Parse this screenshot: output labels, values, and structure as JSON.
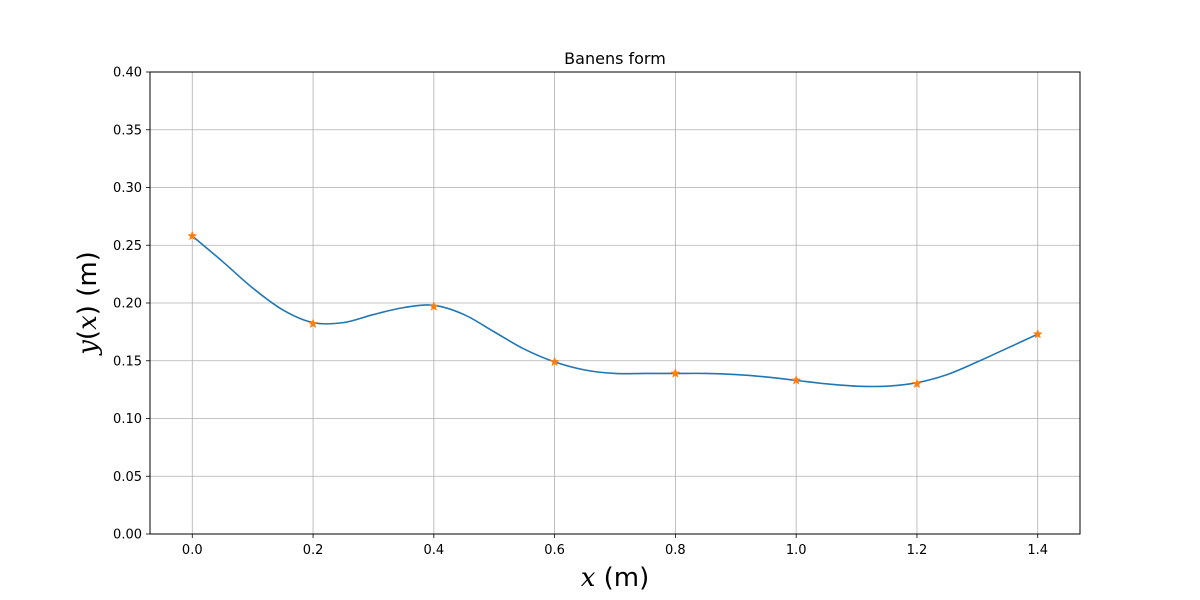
{
  "chart_data": {
    "type": "line",
    "title": "Banens form",
    "xlabel": {
      "var": "x",
      "unit": " (m)"
    },
    "ylabel": {
      "var": "y",
      "paren_open": "(",
      "arg": "x",
      "paren_close": ")",
      "unit": " (m)"
    },
    "xlim": [
      -0.07,
      1.47
    ],
    "ylim": [
      0.0,
      0.4
    ],
    "xticks": [
      0.0,
      0.2,
      0.4,
      0.6,
      0.8,
      1.0,
      1.2,
      1.4
    ],
    "xtick_labels": [
      "0.0",
      "0.2",
      "0.4",
      "0.6",
      "0.8",
      "1.0",
      "1.2",
      "1.4"
    ],
    "yticks": [
      0.0,
      0.05,
      0.1,
      0.15,
      0.2,
      0.25,
      0.3,
      0.35,
      0.4
    ],
    "ytick_labels": [
      "0.00",
      "0.05",
      "0.10",
      "0.15",
      "0.20",
      "0.25",
      "0.30",
      "0.35",
      "0.40"
    ],
    "grid": true,
    "series": [
      {
        "kind": "line",
        "color": "#1f77b4",
        "x": [
          0.0,
          0.05,
          0.1,
          0.15,
          0.2,
          0.25,
          0.3,
          0.35,
          0.4,
          0.45,
          0.5,
          0.55,
          0.6,
          0.65,
          0.7,
          0.75,
          0.8,
          0.85,
          0.9,
          0.95,
          1.0,
          1.05,
          1.1,
          1.15,
          1.2,
          1.25,
          1.3,
          1.35,
          1.4
        ],
        "y": [
          0.258,
          0.236,
          0.213,
          0.194,
          0.183,
          0.183,
          0.19,
          0.196,
          0.198,
          0.19,
          0.175,
          0.16,
          0.149,
          0.142,
          0.139,
          0.139,
          0.139,
          0.139,
          0.138,
          0.136,
          0.133,
          0.13,
          0.128,
          0.128,
          0.131,
          0.138,
          0.149,
          0.161,
          0.173
        ]
      },
      {
        "kind": "markers",
        "marker": "star",
        "color": "#ff7f0e",
        "x": [
          0.0,
          0.2,
          0.4,
          0.6,
          0.8,
          1.0,
          1.2,
          1.4
        ],
        "y": [
          0.258,
          0.182,
          0.197,
          0.149,
          0.139,
          0.133,
          0.13,
          0.173
        ]
      }
    ]
  }
}
